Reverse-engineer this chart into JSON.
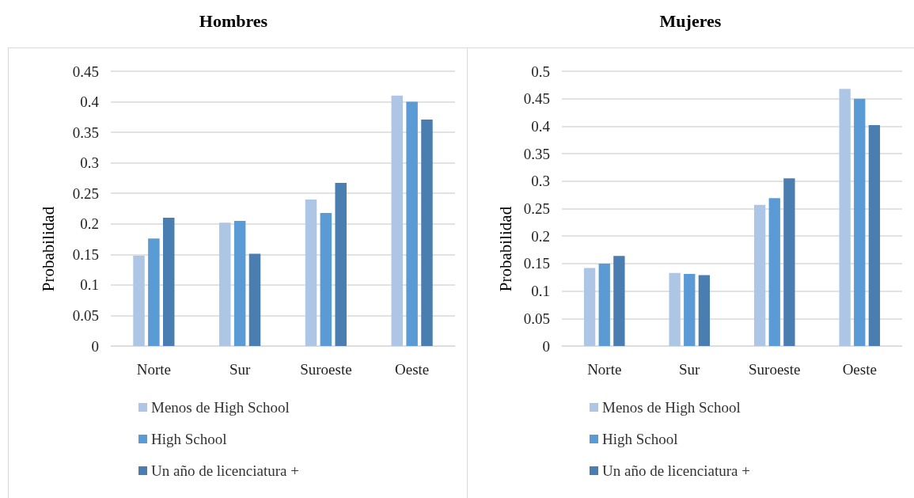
{
  "chart_data": [
    {
      "type": "bar",
      "title": "Hombres",
      "ylabel": "Probabilidad",
      "categories": [
        "Norte",
        "Sur",
        "Suroeste",
        "Oeste"
      ],
      "series": [
        {
          "name": "Menos de High School",
          "color": "#aec6e6",
          "values": [
            0.148,
            0.202,
            0.24,
            0.41
          ]
        },
        {
          "name": "High School",
          "color": "#5b9bd5",
          "values": [
            0.176,
            0.205,
            0.218,
            0.4
          ]
        },
        {
          "name": "Un año de licenciatura +",
          "color": "#4a7eb0",
          "values": [
            0.21,
            0.151,
            0.267,
            0.371
          ]
        }
      ],
      "ylim": [
        0,
        0.45
      ],
      "yticks": [
        0,
        0.05,
        0.1,
        0.15,
        0.2,
        0.25,
        0.3,
        0.35,
        0.4,
        0.45
      ],
      "grid": "y",
      "legend": "bottom"
    },
    {
      "type": "bar",
      "title": "Mujeres",
      "ylabel": "Probabilidad",
      "categories": [
        "Norte",
        "Sur",
        "Suroeste",
        "Oeste"
      ],
      "series": [
        {
          "name": "Menos de High School",
          "color": "#aec6e6",
          "values": [
            0.142,
            0.133,
            0.257,
            0.468
          ]
        },
        {
          "name": "High School",
          "color": "#5b9bd5",
          "values": [
            0.15,
            0.131,
            0.269,
            0.45
          ]
        },
        {
          "name": "Un año de licenciatura +",
          "color": "#4a7eb0",
          "values": [
            0.164,
            0.129,
            0.305,
            0.402
          ]
        }
      ],
      "ylim": [
        0,
        0.5
      ],
      "yticks": [
        0,
        0.05,
        0.1,
        0.15,
        0.2,
        0.25,
        0.3,
        0.35,
        0.4,
        0.45,
        0.5
      ],
      "grid": "y",
      "legend": "bottom"
    }
  ]
}
